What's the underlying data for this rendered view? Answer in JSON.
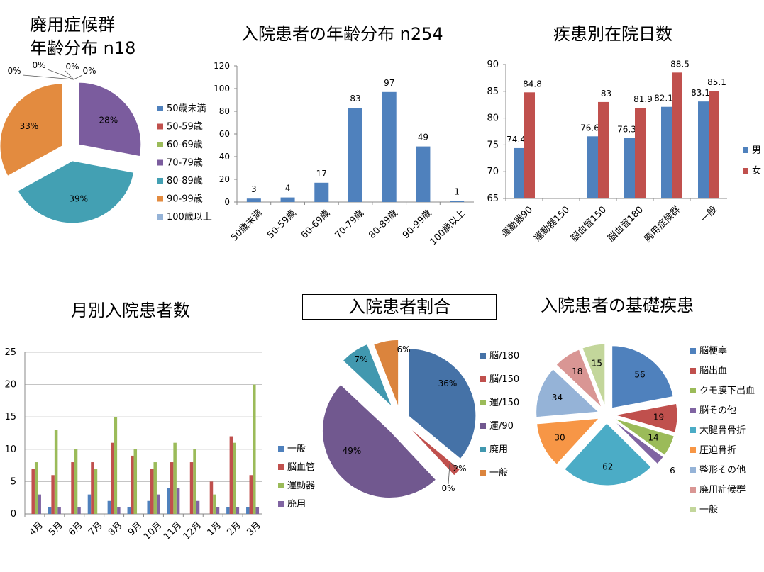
{
  "colors": {
    "blue": "#4f81bd",
    "red": "#c0504d",
    "green": "#9bbb59",
    "purple": "#8064a2",
    "teal": "#4bacc6",
    "orange": "#f79646",
    "lightblue": "#95b3d7",
    "pink": "#d99694",
    "lightgreen": "#c3d69b",
    "pieBlue": "#4572a7",
    "piePurple": "#71588f",
    "pieTeal": "#4198af",
    "pieOrange": "#db843d",
    "piePurple1": "#7b5c9e",
    "pieTeal1": "#43a0b3",
    "pieOrange1": "#e38b3f"
  },
  "chart_data": [
    {
      "id": "haiyo_age",
      "type": "pie",
      "title_line1": "廃用症候群",
      "title_line2": "年齢分布 n18",
      "categories": [
        "50歳未満",
        "50-59歳",
        "60-69歳",
        "70-79歳",
        "80-89歳",
        "90-99歳",
        "100歳以上"
      ],
      "values": [
        0,
        0,
        0,
        28,
        39,
        33,
        0
      ],
      "labels": [
        "0%",
        "0%",
        "0%",
        "28%",
        "39%",
        "33%",
        "0%"
      ],
      "legend_position": "right"
    },
    {
      "id": "age_dist",
      "type": "bar",
      "title": "入院患者の年齢分布 n254",
      "categories": [
        "50歳未満",
        "50-59歳",
        "60-69歳",
        "70-79歳",
        "80-89歳",
        "90-99歳",
        "100歳以上"
      ],
      "values": [
        3,
        4,
        17,
        83,
        97,
        49,
        1
      ],
      "ylim": [
        0,
        120
      ],
      "yticks": [
        "0",
        "20",
        "40",
        "60",
        "80",
        "100",
        "120"
      ],
      "grid": false
    },
    {
      "id": "stay_days",
      "type": "bar",
      "title": "疾患別在院日数",
      "categories": [
        "運動器90",
        "運動器150",
        "脳血管150",
        "脳血管180",
        "廃用症候群",
        "一般"
      ],
      "series": [
        {
          "name": "男",
          "values": [
            74.4,
            null,
            76.6,
            76.3,
            82.1,
            83.1
          ],
          "labels": [
            "74.4",
            "",
            "76.6",
            "76.3",
            "82.1",
            "83.1"
          ]
        },
        {
          "name": "女",
          "values": [
            84.8,
            null,
            83,
            81.9,
            88.5,
            85.1
          ],
          "labels": [
            "84.8",
            "",
            "83",
            "81.9",
            "88.5",
            "85.1"
          ]
        }
      ],
      "ylim": [
        65,
        90
      ],
      "yticks": [
        "65",
        "70",
        "75",
        "80",
        "85",
        "90"
      ],
      "legend_position": "right"
    },
    {
      "id": "monthly",
      "type": "bar",
      "title": "月別入院患者数",
      "categories": [
        "4月",
        "5月",
        "6月",
        "7月",
        "8月",
        "9月",
        "10月",
        "11月",
        "12月",
        "1月",
        "2月",
        "3月"
      ],
      "series": [
        {
          "name": "一般",
          "values": [
            0,
            1,
            0,
            3,
            2,
            1,
            2,
            4,
            0,
            0,
            1,
            1
          ]
        },
        {
          "name": "脳血管",
          "values": [
            7,
            6,
            8,
            8,
            11,
            9,
            7,
            8,
            8,
            5,
            12,
            6
          ]
        },
        {
          "name": "運動器",
          "values": [
            8,
            13,
            10,
            7,
            15,
            10,
            8,
            11,
            10,
            3,
            11,
            20
          ]
        },
        {
          "name": "廃用",
          "values": [
            3,
            1,
            1,
            0,
            1,
            0,
            3,
            4,
            2,
            1,
            1,
            1
          ]
        }
      ],
      "ylim": [
        0,
        25
      ],
      "yticks": [
        "0",
        "5",
        "10",
        "15",
        "20",
        "25"
      ],
      "grid": true,
      "legend_position": "right"
    },
    {
      "id": "ratio",
      "type": "pie",
      "title": "入院患者割合",
      "categories": [
        "脳/180",
        "脳/150",
        "運/150",
        "運/90",
        "廃用",
        "一般"
      ],
      "values": [
        36,
        2,
        0,
        49,
        7,
        6
      ],
      "labels": [
        "36%",
        "2%",
        "0%",
        "49%",
        "7%",
        "6%"
      ],
      "legend_position": "right"
    },
    {
      "id": "diseases",
      "type": "pie",
      "title": "入院患者の基礎疾患",
      "categories": [
        "脳梗塞",
        "脳出血",
        "クモ膜下出血",
        "脳その他",
        "大腿骨骨折",
        "圧迫骨折",
        "整形その他",
        "廃用症候群",
        "一般"
      ],
      "values": [
        56,
        19,
        14,
        6,
        62,
        30,
        34,
        18,
        15
      ],
      "labels": [
        "56",
        "19",
        "14",
        "6",
        "62",
        "30",
        "34",
        "18",
        "15"
      ],
      "legend_position": "right"
    }
  ]
}
